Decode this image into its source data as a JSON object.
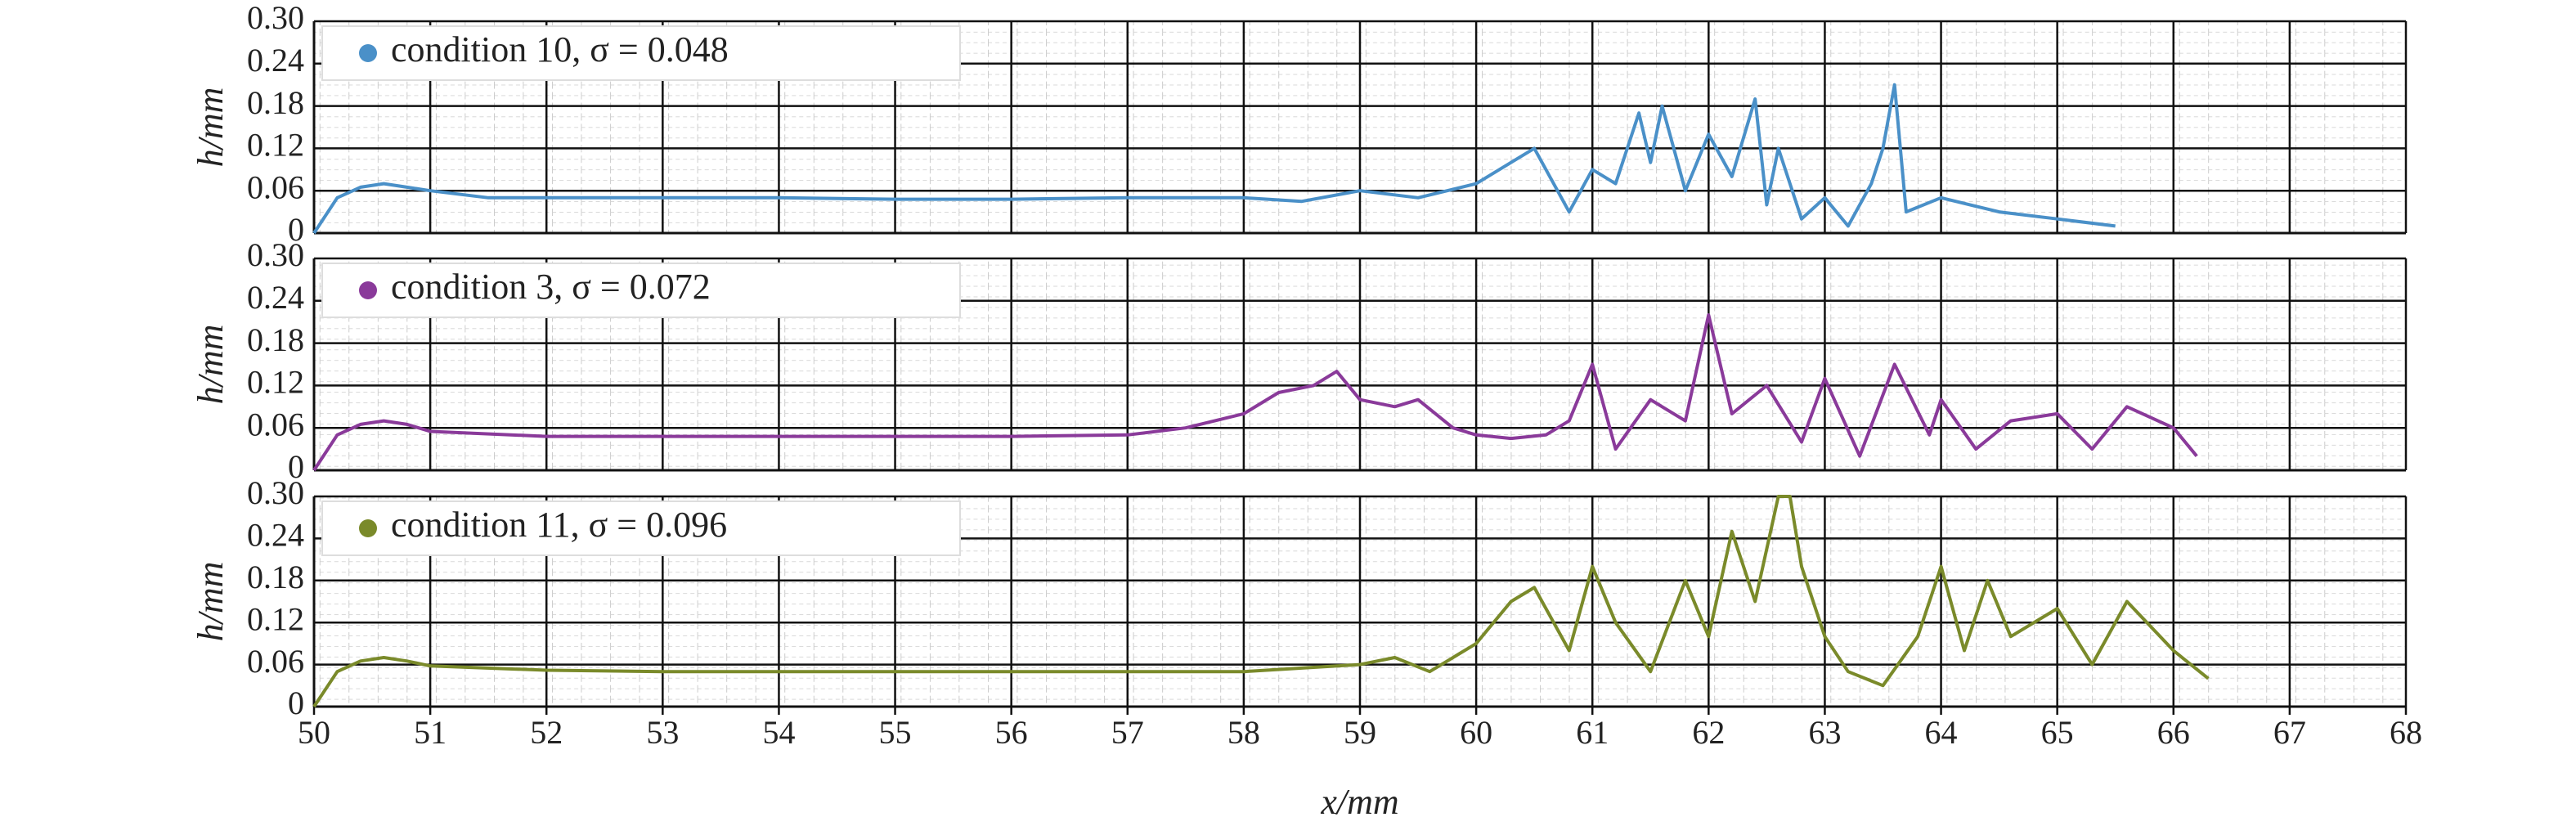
{
  "chart_data": [
    {
      "type": "line",
      "ylabel": "h/mm",
      "x": [
        50,
        50.2,
        50.4,
        50.6,
        50.8,
        51,
        51.5,
        52,
        53,
        54,
        55,
        56,
        57,
        58,
        58.5,
        59,
        59.5,
        60,
        60.3,
        60.5,
        60.8,
        61,
        61.2,
        61.4,
        61.5,
        61.6,
        61.8,
        62,
        62.2,
        62.4,
        62.5,
        62.6,
        62.8,
        63,
        63.2,
        63.4,
        63.5,
        63.6,
        63.7,
        64,
        64.5,
        65,
        65.5
      ],
      "series": [
        {
          "name": "condition 10, σ = 0.048",
          "color": "#4a90c8",
          "values": [
            0,
            0.05,
            0.065,
            0.07,
            0.065,
            0.06,
            0.05,
            0.05,
            0.05,
            0.05,
            0.048,
            0.048,
            0.05,
            0.05,
            0.045,
            0.06,
            0.05,
            0.07,
            0.1,
            0.12,
            0.03,
            0.09,
            0.07,
            0.17,
            0.1,
            0.18,
            0.06,
            0.14,
            0.08,
            0.19,
            0.04,
            0.12,
            0.02,
            0.05,
            0.01,
            0.07,
            0.12,
            0.21,
            0.03,
            0.05,
            0.03,
            0.02,
            0.01
          ]
        }
      ],
      "xlim": [
        50,
        68
      ],
      "xticks": [
        50,
        51,
        52,
        53,
        54,
        55,
        56,
        57,
        58,
        59,
        60,
        61,
        62,
        63,
        64,
        65,
        66,
        67,
        68
      ],
      "ylim": [
        0,
        0.3
      ],
      "yticks": [
        0,
        0.06,
        0.12,
        0.18,
        0.24,
        {
          "value": 0.3,
          "label": "0.30"
        }
      ],
      "grid": true
    },
    {
      "type": "line",
      "ylabel": "h/mm",
      "x": [
        50,
        50.2,
        50.4,
        50.6,
        50.8,
        51,
        52,
        53,
        54,
        55,
        56,
        57,
        57.5,
        58,
        58.3,
        58.6,
        58.8,
        59,
        59.3,
        59.5,
        59.8,
        60,
        60.3,
        60.6,
        60.8,
        61,
        61.2,
        61.5,
        61.8,
        62,
        62.2,
        62.5,
        62.8,
        63,
        63.3,
        63.6,
        63.9,
        64,
        64.3,
        64.6,
        65,
        65.3,
        65.6,
        66,
        66.2
      ],
      "series": [
        {
          "name": "condition 3, σ = 0.072",
          "color": "#8a3a9a",
          "values": [
            0,
            0.05,
            0.065,
            0.07,
            0.065,
            0.055,
            0.048,
            0.048,
            0.048,
            0.048,
            0.048,
            0.05,
            0.06,
            0.08,
            0.11,
            0.12,
            0.14,
            0.1,
            0.09,
            0.1,
            0.06,
            0.05,
            0.045,
            0.05,
            0.07,
            0.15,
            0.03,
            0.1,
            0.07,
            0.22,
            0.08,
            0.12,
            0.04,
            0.13,
            0.02,
            0.15,
            0.05,
            0.1,
            0.03,
            0.07,
            0.08,
            0.03,
            0.09,
            0.06,
            0.02
          ]
        }
      ],
      "xlim": [
        50,
        68
      ],
      "xticks": [
        50,
        51,
        52,
        53,
        54,
        55,
        56,
        57,
        58,
        59,
        60,
        61,
        62,
        63,
        64,
        65,
        66,
        67,
        68
      ],
      "ylim": [
        0,
        0.3
      ],
      "yticks": [
        0,
        0.06,
        0.12,
        0.18,
        0.24,
        {
          "value": 0.3,
          "label": "0.30"
        }
      ],
      "grid": true
    },
    {
      "type": "line",
      "ylabel": "h/mm",
      "xlabel": "x/mm",
      "x": [
        50,
        50.2,
        50.4,
        50.6,
        50.8,
        51,
        52,
        53,
        54,
        55,
        56,
        57,
        58,
        58.5,
        59,
        59.3,
        59.6,
        60,
        60.3,
        60.5,
        60.8,
        61,
        61.2,
        61.5,
        61.8,
        62,
        62.2,
        62.4,
        62.6,
        62.7,
        62.8,
        63,
        63.2,
        63.5,
        63.8,
        64,
        64.2,
        64.4,
        64.6,
        65,
        65.3,
        65.6,
        66,
        66.3
      ],
      "series": [
        {
          "name": "condition 11, σ = 0.096",
          "color": "#7a8a2a",
          "values": [
            0,
            0.05,
            0.065,
            0.07,
            0.065,
            0.058,
            0.052,
            0.05,
            0.05,
            0.05,
            0.05,
            0.05,
            0.05,
            0.055,
            0.06,
            0.07,
            0.05,
            0.09,
            0.15,
            0.17,
            0.08,
            0.2,
            0.12,
            0.05,
            0.18,
            0.1,
            0.25,
            0.15,
            0.3,
            0.3,
            0.2,
            0.1,
            0.05,
            0.03,
            0.1,
            0.2,
            0.08,
            0.18,
            0.1,
            0.14,
            0.06,
            0.15,
            0.08,
            0.04
          ]
        }
      ],
      "xlim": [
        50,
        68
      ],
      "xticks": [
        50,
        51,
        52,
        53,
        54,
        55,
        56,
        57,
        58,
        59,
        60,
        61,
        62,
        63,
        64,
        65,
        66,
        67,
        68
      ],
      "ylim": [
        0,
        0.3
      ],
      "yticks": [
        0,
        0.06,
        0.12,
        0.18,
        0.24,
        {
          "value": 0.3,
          "label": "0.30"
        }
      ],
      "grid": true
    }
  ]
}
